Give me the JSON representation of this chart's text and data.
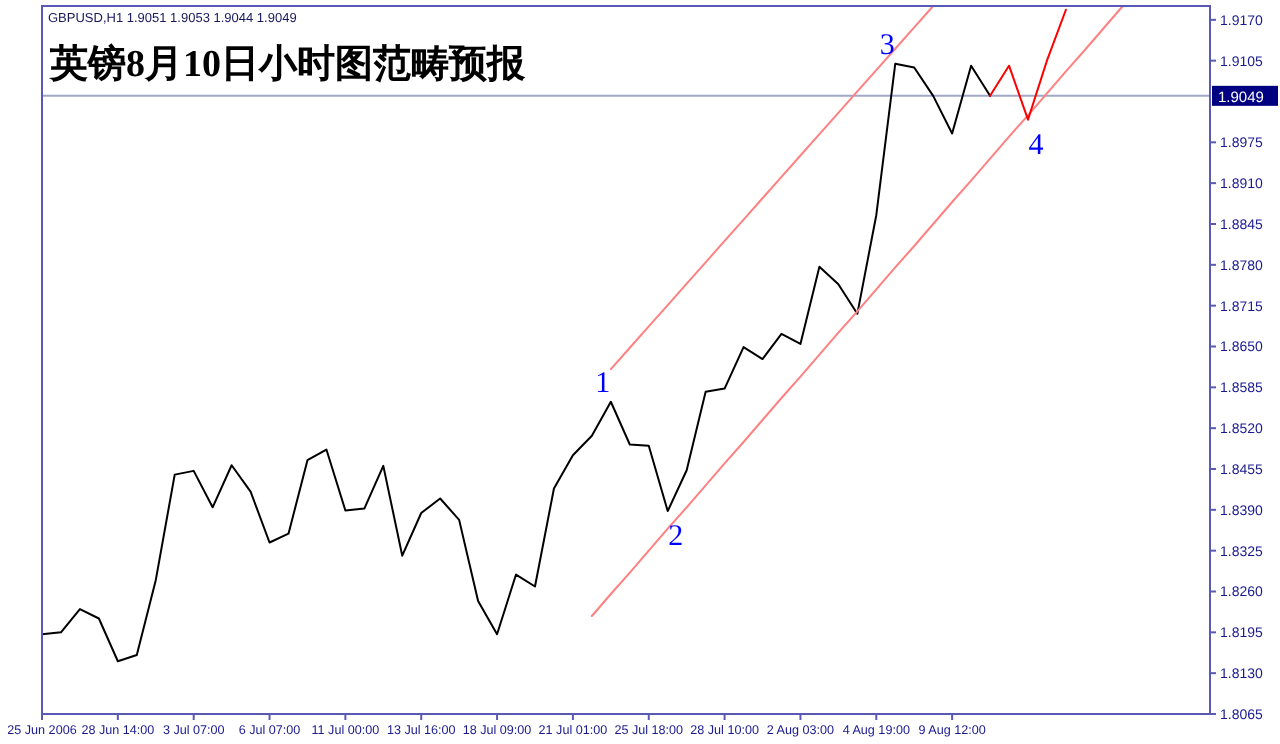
{
  "chart_data": {
    "type": "line",
    "title": "英镑8月10日小时图范畴预报",
    "categories": [
      "25 Jun 2006",
      null,
      null,
      null,
      "28 Jun 14:00",
      null,
      null,
      null,
      "3 Jul 07:00",
      null,
      null,
      null,
      "6 Jul 07:00",
      null,
      null,
      null,
      "11 Jul 00:00",
      null,
      null,
      null,
      "13 Jul 16:00",
      null,
      null,
      null,
      "18 Jul 09:00",
      null,
      null,
      null,
      "21 Jul 01:00",
      null,
      null,
      null,
      "25 Jul 18:00",
      null,
      null,
      null,
      "28 Jul 10:00",
      null,
      null,
      null,
      "2 Aug 03:00",
      null,
      null,
      null,
      "4 Aug 19:00",
      null,
      null,
      null,
      "9 Aug 12:00",
      null,
      null,
      null,
      null,
      null,
      null,
      null,
      null,
      null,
      null,
      null,
      null,
      null
    ],
    "ylim": [
      1.8065,
      1.9192
    ],
    "yticks": [
      1.8065,
      {
        "value": 1.813,
        "label": "1.8130"
      },
      1.8195,
      {
        "value": 1.826,
        "label": "1.8260"
      },
      1.8325,
      {
        "value": 1.839,
        "label": "1.8390"
      },
      1.8455,
      {
        "value": 1.852,
        "label": "1.8520"
      },
      1.8585,
      {
        "value": 1.865,
        "label": "1.8650"
      },
      1.8715,
      {
        "value": 1.878,
        "label": "1.8780"
      },
      1.8845,
      {
        "value": 1.891,
        "label": "1.8910"
      },
      1.8975,
      1.9105,
      {
        "value": 1.917,
        "label": "1.9170"
      }
    ],
    "grid": false,
    "ref_lines": [
      {
        "axis": "y",
        "value": 1.9049,
        "label": "1.9049",
        "color": "#a0a8c8"
      }
    ],
    "annotations": [
      "GBPUSD,H1  1.9051 1.9053 1.9044 1.9049",
      {
        "text": "1",
        "y": 1.8562
      },
      {
        "text": "2",
        "y": 1.8388
      },
      {
        "text": "3",
        "y": 1.91
      },
      {
        "text": "4",
        "y": 1.9011
      }
    ],
    "series": [
      {
        "color": "#000000",
        "values": [
          1.8192,
          1.8195,
          1.8232,
          1.8217,
          1.8149,
          1.8159,
          1.8278,
          1.8446,
          1.8452,
          1.8394,
          1.8461,
          1.8419,
          1.8338,
          1.8352,
          1.8469,
          1.8486,
          1.8389,
          1.8392,
          1.846,
          1.8317,
          1.8385,
          1.8408,
          1.8374,
          1.8245,
          1.8192,
          1.8287,
          1.8268,
          1.8424,
          1.8477,
          1.8508,
          1.8562,
          1.8494,
          1.8492,
          1.8388,
          1.8453,
          1.8578,
          1.8583,
          1.8649,
          1.863,
          1.867,
          1.8654,
          1.8777,
          1.8749,
          1.8702,
          1.8859,
          1.91,
          1.9094,
          1.9049,
          1.8989,
          1.9097,
          1.9049,
          null,
          null,
          null,
          null,
          null,
          null,
          null,
          null,
          null,
          null,
          null
        ]
      },
      {
        "color": "#ff8080",
        "values": [
          null,
          null,
          null,
          null,
          null,
          null,
          null,
          null,
          null,
          null,
          null,
          null,
          null,
          null,
          null,
          null,
          null,
          null,
          null,
          null,
          null,
          null,
          null,
          null,
          null,
          null,
          null,
          null,
          null,
          null,
          1.8614,
          1.8648,
          1.8682,
          1.8716,
          1.875,
          1.8784,
          1.8818,
          1.8852,
          1.8886,
          1.892,
          1.8954,
          1.8988,
          1.9022,
          1.9056,
          1.909,
          1.9124,
          1.9158,
          1.9192,
          null,
          null,
          null,
          null,
          null,
          null,
          null,
          null,
          null,
          null,
          null,
          null,
          null,
          null
        ]
      },
      {
        "color": "#ff8080",
        "values": [
          null,
          null,
          null,
          null,
          null,
          null,
          null,
          null,
          null,
          null,
          null,
          null,
          null,
          null,
          null,
          null,
          null,
          null,
          null,
          null,
          null,
          null,
          null,
          null,
          null,
          null,
          null,
          null,
          null,
          1.8221,
          1.8256,
          1.829,
          1.8325,
          1.836,
          1.8394,
          1.8429,
          1.8464,
          1.8498,
          1.8533,
          1.8568,
          1.8602,
          1.8637,
          1.8672,
          1.8706,
          1.8741,
          1.8776,
          1.881,
          1.8845,
          1.888,
          1.8914,
          1.8949,
          1.8984,
          1.9018,
          1.9053,
          1.9088,
          1.9122,
          1.9157,
          1.9192,
          null,
          null,
          null,
          null
        ]
      },
      {
        "color": "#ff0000",
        "values": [
          null,
          null,
          null,
          null,
          null,
          null,
          null,
          null,
          null,
          null,
          null,
          null,
          null,
          null,
          null,
          null,
          null,
          null,
          null,
          null,
          null,
          null,
          null,
          null,
          null,
          null,
          null,
          null,
          null,
          null,
          null,
          null,
          null,
          null,
          null,
          null,
          null,
          null,
          null,
          null,
          null,
          null,
          null,
          null,
          null,
          null,
          null,
          null,
          null,
          null,
          1.9049,
          1.9097,
          1.9011,
          1.9105,
          1.9186,
          null,
          null,
          null,
          null,
          null,
          null,
          null
        ]
      }
    ]
  }
}
